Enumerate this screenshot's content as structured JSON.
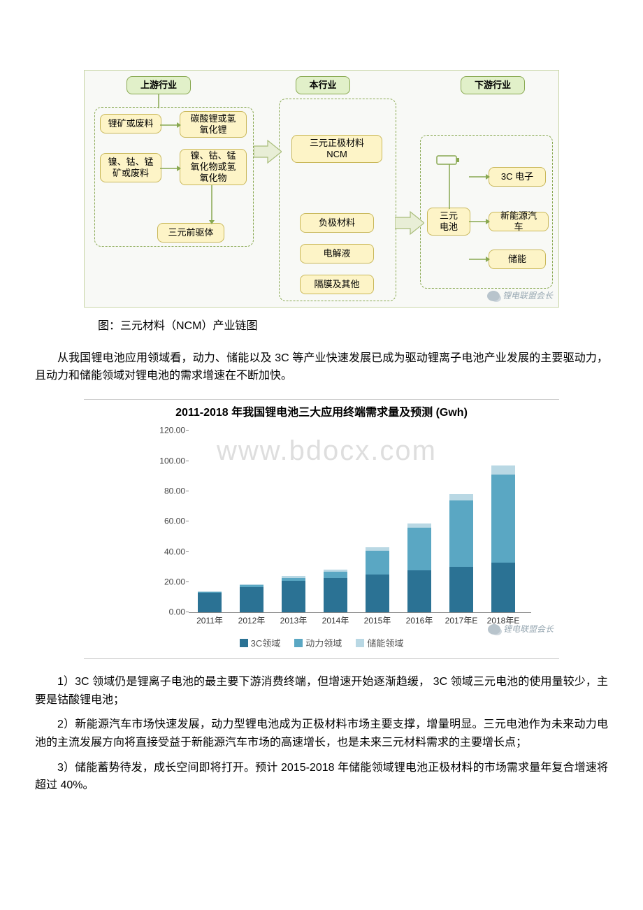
{
  "diagram": {
    "bg": "#f8f9f6",
    "headers": {
      "upstream": "上游行业",
      "this": "本行业",
      "downstream": "下游行业"
    },
    "upstream_nodes": {
      "li_ore": "锂矿或废料",
      "li_carb": "碳酸锂或氢\n氧化锂",
      "ncm_ore": "镍、钴、锰\n矿或废料",
      "ncm_ox": "镍、钴、锰\n氧化物或氢\n氧化物",
      "precursor": "三元前驱体"
    },
    "mid_nodes": {
      "ncm": "三元正极材料\nNCM",
      "anode": "负极材料",
      "elyte": "电解液",
      "separator": "隔膜及其他"
    },
    "down_nodes": {
      "c3": "3C 电子",
      "tricell": "三元\n电池",
      "nev": "新能源汽车",
      "storage": "储能"
    },
    "watermark_text": "锂电联盟会长"
  },
  "caption": "图：三元材料（NCM）产业链图",
  "para1": "从我国锂电池应用领域看，动力、储能以及 3C 等产业快速发展已成为驱动锂离子电池产业发展的主要驱动力，且动力和储能领域对锂电池的需求增速在不断加快。",
  "chart": {
    "title": "2011-2018 年我国锂电池三大应用终端需求量及预测 (Gwh)",
    "ylim": [
      0,
      120
    ],
    "ytick_step": 20,
    "categories": [
      "2011年",
      "2012年",
      "2013年",
      "2014年",
      "2015年",
      "2016年",
      "2017年E",
      "2018年E"
    ],
    "series": [
      {
        "name": "3C领域",
        "color": "#2b7294",
        "values": [
          13,
          17,
          21,
          23,
          25,
          28,
          30,
          33
        ]
      },
      {
        "name": "动力领域",
        "color": "#5aa7c3",
        "values": [
          0.5,
          1,
          2,
          4,
          16,
          28,
          44,
          58
        ]
      },
      {
        "name": "储能领域",
        "color": "#b9d8e4",
        "values": [
          0.3,
          0.5,
          1,
          1.5,
          2,
          3,
          4,
          6
        ]
      }
    ],
    "watermark": "www.bdocx.com",
    "wechat": "锂电联盟会长"
  },
  "para2": "1）3C 领域仍是锂离子电池的最主要下游消费终端，但增速开始逐渐趋缓， 3C 领域三元电池的使用量较少，主要是钴酸锂电池；",
  "para3": "2）新能源汽车市场快速发展，动力型锂电池成为正极材料市场主要支撑，增量明显。三元电池作为未来动力电池的主流发展方向将直接受益于新能源汽车市场的高速增长，也是未来三元材料需求的主要增长点；",
  "para4": "3）储能蓄势待发，成长空间即将打开。预计 2015-2018 年储能领域锂电池正极材料的市场需求量年复合增速将超过 40%。"
}
